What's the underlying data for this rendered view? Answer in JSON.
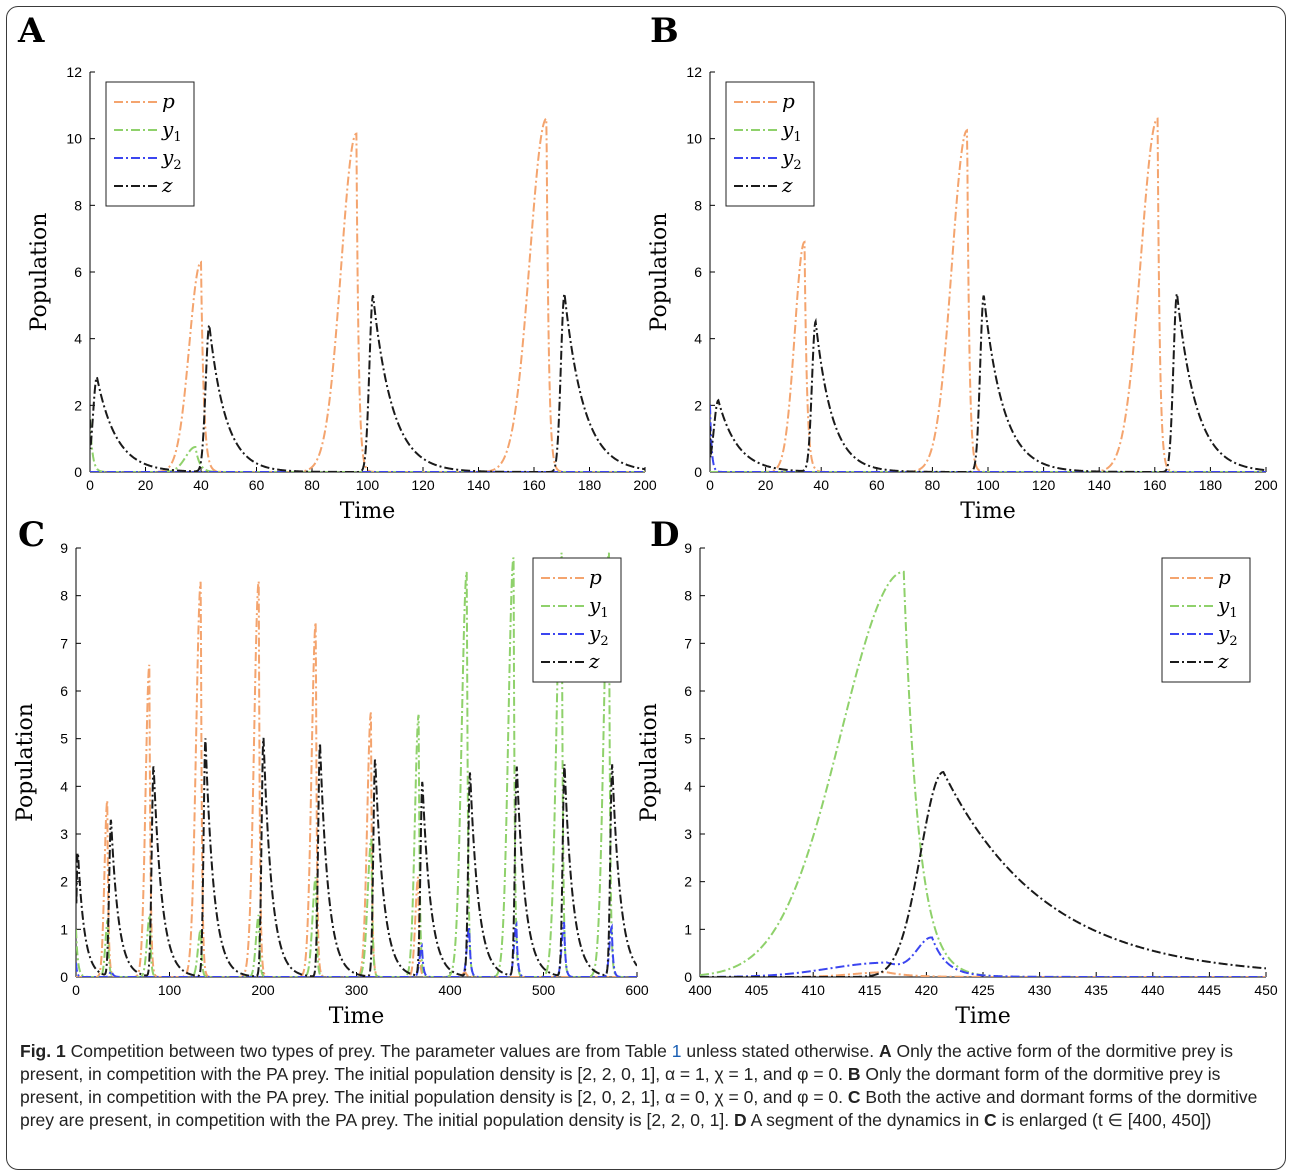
{
  "caption": {
    "fig_label": "Fig. 1",
    "intro": "Competition between two types of prey. The parameter values are from Table",
    "table_ref": "1",
    "after_ref": "unless stated otherwise.",
    "A_label": "A",
    "A_text": "Only the active form of the dormitive prey is present, in competition with the PA prey. The initial population density is [2, 2, 0, 1], α = 1, χ = 1, and φ = 0.",
    "B_label": "B",
    "B_text": "Only the dormant form of the dormitive prey is present, in competition with the PA prey. The initial population density is [2, 0, 2, 1], α = 0, χ = 0, and φ = 0.",
    "C_label": "C",
    "C_text": "Both the active and dormant forms of the dormitive prey are present, in competition with the PA prey. The initial population density is [2, 2, 0, 1].",
    "D_label": "D",
    "D_text": "A segment of the dynamics in",
    "D_ref": "C",
    "D_text2": "is enlarged (t ∈ [400, 450])"
  },
  "colors": {
    "p": "#f4a46e",
    "y1": "#8fd16b",
    "y2": "#3b45f0",
    "z": "#1a1a1a"
  },
  "chart_data": [
    {
      "panel": "A",
      "type": "line",
      "xlabel": "Time",
      "ylabel": "Population",
      "xlim": [
        0,
        200
      ],
      "ylim": [
        0,
        12
      ],
      "xticks": [
        0,
        20,
        40,
        60,
        80,
        100,
        120,
        140,
        160,
        180,
        200
      ],
      "yticks": [
        0,
        2,
        4,
        6,
        8,
        10,
        12
      ],
      "legend": "top-left",
      "series": [
        {
          "name": "p",
          "key": "p",
          "peaks": [
            [
              40,
              6.3,
              4.2,
              1.0
            ],
            [
              96,
              10.15,
              5.5,
              0.8
            ],
            [
              164.5,
              10.6,
              6,
              0.8
            ]
          ]
        },
        {
          "name": "y1",
          "key": "y1",
          "init": [
            0,
            1.6,
            0.9
          ],
          "peaks": [
            [
              38,
              0.75,
              3.5,
              1.5
            ]
          ]
        },
        {
          "name": "y2",
          "key": "y2",
          "peaks": []
        },
        {
          "name": "z",
          "key": "z",
          "init": [
            0,
            1.0,
            0
          ],
          "peaks": [
            [
              2.5,
              2.85,
              1.4,
              7
            ],
            [
              43,
              4.4,
              1.3,
              6
            ],
            [
              102,
              5.3,
              1.3,
              7
            ],
            [
              171,
              5.35,
              1.3,
              7
            ]
          ]
        }
      ]
    },
    {
      "panel": "B",
      "type": "line",
      "xlabel": "Time",
      "ylabel": "Population",
      "xlim": [
        0,
        200
      ],
      "ylim": [
        0,
        12
      ],
      "xticks": [
        0,
        20,
        40,
        60,
        80,
        100,
        120,
        140,
        160,
        180,
        200
      ],
      "yticks": [
        0,
        2,
        4,
        6,
        8,
        10,
        12
      ],
      "legend": "top-left",
      "series": [
        {
          "name": "p",
          "key": "p",
          "peaks": [
            [
              34,
              6.9,
              3.5,
              0.9
            ],
            [
              92.5,
              10.25,
              5.5,
              0.8
            ],
            [
              161,
              10.6,
              6,
              0.8
            ]
          ]
        },
        {
          "name": "y1",
          "key": "y1",
          "peaks": []
        },
        {
          "name": "y2",
          "key": "y2",
          "init": [
            0,
            2.0,
            0.6
          ],
          "peaks": []
        },
        {
          "name": "z",
          "key": "z",
          "init": [
            0,
            1.0,
            0
          ],
          "peaks": [
            [
              3,
              2.15,
              1.6,
              7
            ],
            [
              38,
              4.5,
              1.3,
              6
            ],
            [
              98.5,
              5.3,
              1.3,
              7
            ],
            [
              168,
              5.35,
              1.3,
              7
            ]
          ]
        }
      ]
    },
    {
      "panel": "C",
      "type": "line",
      "xlabel": "Time",
      "ylabel": "Population",
      "xlim": [
        0,
        600
      ],
      "ylim": [
        0,
        9
      ],
      "xticks": [
        0,
        100,
        200,
        300,
        400,
        500,
        600
      ],
      "yticks": [
        0,
        1,
        2,
        3,
        4,
        5,
        6,
        7,
        8,
        9
      ],
      "legend": "top-right",
      "series": [
        {
          "name": "p",
          "key": "p",
          "peaks": [
            [
              33.5,
              3.7,
              3,
              1.2
            ],
            [
              78.5,
              6.55,
              4,
              1.2
            ],
            [
              133.5,
              8.3,
              5,
              1.2
            ],
            [
              195.5,
              8.3,
              5,
              1.2
            ],
            [
              256.5,
              7.45,
              4.5,
              1.2
            ],
            [
              315.5,
              5.55,
              4,
              1.2
            ],
            [
              366,
              2.1,
              3,
              1.2
            ],
            [
              416.5,
              0.1,
              3,
              2
            ]
          ]
        },
        {
          "name": "y1",
          "key": "y1",
          "init": [
            0,
            1.0,
            2
          ],
          "peaks": [
            [
              34,
              1.2,
              2.5,
              1.2
            ],
            [
              79,
              1.3,
              3,
              1.2
            ],
            [
              133.5,
              1.0,
              3,
              1.2
            ],
            [
              195.5,
              1.3,
              3,
              1.2
            ],
            [
              256.5,
              2.1,
              3.5,
              1.2
            ],
            [
              316,
              2.9,
              4,
              1.2
            ],
            [
              366.5,
              5.5,
              4,
              1.2
            ],
            [
              418,
              8.5,
              5.5,
              1.3
            ],
            [
              468,
              8.8,
              5.5,
              1.3
            ],
            [
              519.5,
              8.9,
              5.5,
              1.3
            ],
            [
              570,
              8.9,
              5.5,
              1.3
            ]
          ]
        },
        {
          "name": "y2",
          "key": "y2",
          "init": [
            0,
            0.3,
            1.2
          ],
          "peaks": [
            [
              38,
              0.12,
              2,
              2
            ],
            [
              370,
              0.65,
              2.5,
              1.5
            ],
            [
              420.5,
              1.05,
              2.5,
              1.5
            ],
            [
              471,
              1.1,
              2.5,
              1.5
            ],
            [
              522,
              1.15,
              2.5,
              1.5
            ],
            [
              573,
              1.05,
              2.5,
              1.5
            ]
          ]
        },
        {
          "name": "z",
          "key": "z",
          "init": [
            0,
            1.0,
            0
          ],
          "peaks": [
            [
              2,
              2.65,
              1.5,
              7
            ],
            [
              37.5,
              3.3,
              2,
              8
            ],
            [
              83,
              4.45,
              2,
              9
            ],
            [
              138.5,
              5.0,
              2,
              9
            ],
            [
              200.5,
              5.05,
              2,
              9
            ],
            [
              261,
              4.9,
              2,
              9
            ],
            [
              320,
              4.6,
              2,
              9
            ],
            [
              370.5,
              4.1,
              2,
              9
            ],
            [
              421.5,
              4.3,
              2,
              9
            ],
            [
              471.5,
              4.4,
              2,
              9
            ],
            [
              522.5,
              4.45,
              2,
              9
            ],
            [
              573.5,
              4.45,
              2,
              9
            ]
          ]
        }
      ]
    },
    {
      "panel": "D",
      "type": "line",
      "xlabel": "Time",
      "ylabel": "Population",
      "xlim": [
        400,
        450
      ],
      "ylim": [
        0,
        9
      ],
      "xticks": [
        400,
        405,
        410,
        415,
        420,
        425,
        430,
        435,
        440,
        445,
        450
      ],
      "yticks": [
        0,
        1,
        2,
        3,
        4,
        5,
        6,
        7,
        8,
        9
      ],
      "legend": "top-right",
      "series": [
        {
          "name": "p",
          "key": "p",
          "peaks": [
            [
              416.5,
              0.1,
              3,
              2
            ]
          ]
        },
        {
          "name": "y1",
          "key": "y1",
          "peaks": [
            [
              418,
              8.5,
              5.5,
              1.3
            ]
          ]
        },
        {
          "name": "y2",
          "key": "y2",
          "peaks": [
            [
              416.5,
              0.3,
              5,
              3
            ],
            [
              420.5,
              0.75,
              1.3,
              1.2
            ]
          ]
        },
        {
          "name": "z",
          "key": "z",
          "peaks": [
            [
              421.5,
              4.3,
              2,
              9
            ]
          ]
        }
      ]
    }
  ],
  "tex_key": {
    "p": "p",
    "y1": "y",
    "y2": "y",
    "z": "z"
  },
  "tex_sub": {
    "p": "",
    "y1": "1",
    "y2": "2",
    "z": ""
  }
}
